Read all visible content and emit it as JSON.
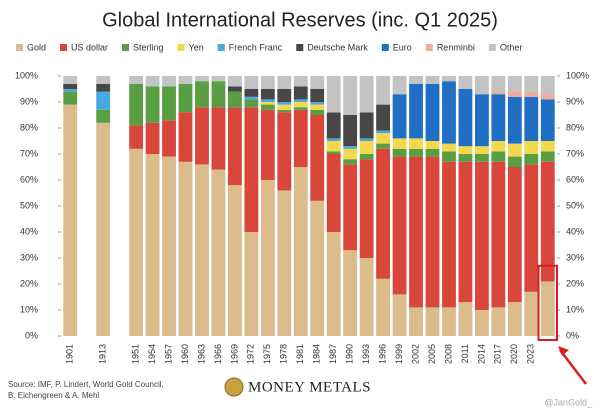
{
  "chart_data": {
    "type": "stacked_bar",
    "title": "Global International Reserves (inc. Q1 2025)",
    "categories": [
      "1901",
      null,
      "1913",
      null,
      "1951",
      "1954",
      "1957",
      "1960",
      "1963",
      "1966",
      "1969",
      "1972",
      "1975",
      "1978",
      "1981",
      "1984",
      "1987",
      "1990",
      "1993",
      "1996",
      "1999",
      "2002",
      "2005",
      "2008",
      "2011",
      "2014",
      "2017",
      "2020",
      "2023",
      null
    ],
    "series": [
      {
        "name": "Gold",
        "color": "#dcbb8c",
        "values": [
          89,
          null,
          82,
          null,
          72,
          70,
          69,
          67,
          66,
          64,
          58,
          40,
          60,
          56,
          65,
          52,
          40,
          33,
          30,
          22,
          16,
          11,
          11,
          11,
          13,
          10,
          11,
          13,
          17,
          21
        ]
      },
      {
        "name": "US dollar",
        "color": "#d9463b",
        "values": [
          0,
          null,
          0,
          null,
          9,
          12,
          14,
          19,
          22,
          24,
          30,
          48,
          27,
          30,
          22,
          33,
          30,
          33,
          38,
          50,
          53,
          58,
          58,
          56,
          54,
          57,
          56,
          52,
          49,
          46
        ]
      },
      {
        "name": "Sterling",
        "color": "#5a9e44",
        "values": [
          5,
          null,
          5,
          null,
          16,
          14,
          13,
          11,
          10,
          10,
          6,
          3,
          2,
          1,
          1,
          2,
          1,
          2,
          2,
          2,
          3,
          3,
          3,
          4,
          3,
          3,
          4,
          4,
          4,
          4
        ]
      },
      {
        "name": "Yen",
        "color": "#f3d84c",
        "values": [
          0,
          null,
          0,
          null,
          0,
          0,
          0,
          0,
          0,
          0,
          0,
          0,
          1,
          2,
          2,
          2,
          4,
          4,
          5,
          4,
          4,
          4,
          3,
          3,
          3,
          3,
          4,
          5,
          5,
          4
        ]
      },
      {
        "name": "French Franc",
        "color": "#4ba9e1",
        "values": [
          1,
          null,
          7,
          null,
          0,
          0,
          0,
          0,
          0,
          0,
          0,
          1,
          1,
          1,
          1,
          1,
          1,
          1,
          1,
          1,
          0,
          0,
          0,
          0,
          0,
          0,
          0,
          0,
          0,
          0
        ]
      },
      {
        "name": "Deutsche Mark",
        "color": "#474747",
        "values": [
          2,
          null,
          3,
          null,
          0,
          0,
          0,
          0,
          0,
          0,
          2,
          3,
          4,
          5,
          5,
          5,
          10,
          12,
          10,
          10,
          0,
          0,
          0,
          0,
          0,
          0,
          0,
          0,
          0,
          0
        ]
      },
      {
        "name": "Euro",
        "color": "#1f6fc4",
        "values": [
          0,
          null,
          0,
          null,
          0,
          0,
          0,
          0,
          0,
          0,
          0,
          0,
          0,
          0,
          0,
          0,
          0,
          0,
          0,
          0,
          17,
          21,
          22,
          24,
          22,
          20,
          18,
          18,
          17,
          16
        ]
      },
      {
        "name": "Renminbi",
        "color": "#f1aa9b",
        "values": [
          0,
          null,
          0,
          null,
          0,
          0,
          0,
          0,
          0,
          0,
          0,
          0,
          0,
          0,
          0,
          0,
          0,
          0,
          0,
          0,
          0,
          0,
          0,
          0,
          0,
          0,
          1,
          2,
          2,
          2
        ]
      },
      {
        "name": "Other",
        "color": "#c3c3c3",
        "values": [
          3,
          null,
          3,
          null,
          3,
          4,
          4,
          3,
          2,
          2,
          4,
          5,
          5,
          5,
          4,
          5,
          14,
          15,
          14,
          11,
          7,
          3,
          3,
          2,
          5,
          7,
          6,
          6,
          6,
          7
        ]
      }
    ],
    "ylim": [
      0,
      100
    ],
    "yticks": [
      {
        "value": 0,
        "label": "0%"
      },
      {
        "value": 10,
        "label": "10%"
      },
      {
        "value": 20,
        "label": "20%"
      },
      {
        "value": 30,
        "label": "30%"
      },
      {
        "value": 40,
        "label": "40%"
      },
      {
        "value": 50,
        "label": "50%"
      },
      {
        "value": 60,
        "label": "60%"
      },
      {
        "value": 70,
        "label": "70%"
      },
      {
        "value": 80,
        "label": "80%"
      },
      {
        "value": 90,
        "label": "90%"
      },
      {
        "value": 100,
        "label": "100%"
      }
    ],
    "y2lim": [
      0,
      100
    ],
    "y2ticks": [
      {
        "value": 0,
        "label": "0%"
      },
      {
        "value": 10,
        "label": "10%"
      },
      {
        "value": 20,
        "label": "20%"
      },
      {
        "value": 30,
        "label": "30%"
      },
      {
        "value": 40,
        "label": "40%"
      },
      {
        "value": 50,
        "label": "50%"
      },
      {
        "value": 60,
        "label": "60%"
      },
      {
        "value": 70,
        "label": "70%"
      },
      {
        "value": 80,
        "label": "80%"
      },
      {
        "value": 90,
        "label": "90%"
      },
      {
        "value": 100,
        "label": "100%"
      }
    ],
    "legend": "top",
    "source": "Source: IMF, P. Lindert, World Gold Council, B. Eichengreen & A. Mehl",
    "logo": "MONEY METALS",
    "credit": "@JanGold_"
  }
}
